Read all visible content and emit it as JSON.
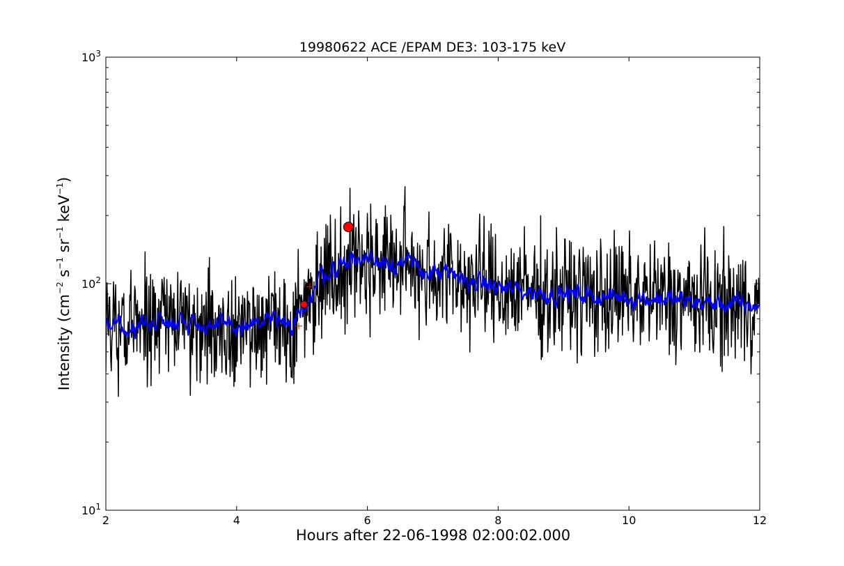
{
  "chart_data": {
    "type": "line",
    "title": "19980622 ACE /EPAM DE3: 103-175 keV",
    "xlabel": "Hours after 22-06-1998 02:00:02.000",
    "ylabel": {
      "prefix": "Intensity (cm",
      "exp1": "−2",
      "mid1": " s",
      "exp2": "−1",
      "mid2": " sr",
      "exp3": "−1",
      "mid3": " keV",
      "exp4": "−1",
      "suffix": ")"
    },
    "xlim": [
      2,
      12
    ],
    "ylim": [
      10,
      1000
    ],
    "yscale": "log",
    "grid": false,
    "x_ticks": [
      {
        "value": 2,
        "label": "2"
      },
      {
        "value": 4,
        "label": "4"
      },
      {
        "value": 6,
        "label": "6"
      },
      {
        "value": 8,
        "label": "8"
      },
      {
        "value": 10,
        "label": "10"
      },
      {
        "value": 12,
        "label": "12"
      }
    ],
    "y_ticks": [
      {
        "value": 10,
        "base": "10",
        "exp": "1"
      },
      {
        "value": 100,
        "base": "10",
        "exp": "2"
      },
      {
        "value": 1000,
        "base": "10",
        "exp": "3"
      }
    ],
    "series": [
      {
        "role": "raw",
        "color": "#000000",
        "keypoints": [
          [
            2.0,
            70
          ],
          [
            2.3,
            60
          ],
          [
            2.6,
            68
          ],
          [
            3.0,
            70
          ],
          [
            3.3,
            68
          ],
          [
            3.6,
            65
          ],
          [
            4.0,
            64
          ],
          [
            4.3,
            66
          ],
          [
            4.6,
            70
          ],
          [
            4.85,
            60
          ],
          [
            5.0,
            80
          ],
          [
            5.15,
            88
          ],
          [
            5.3,
            112
          ],
          [
            5.5,
            115
          ],
          [
            5.7,
            128
          ],
          [
            6.0,
            128
          ],
          [
            6.3,
            126
          ],
          [
            6.6,
            122
          ],
          [
            7.0,
            112
          ],
          [
            7.5,
            104
          ],
          [
            8.0,
            96
          ],
          [
            8.5,
            92
          ],
          [
            9.0,
            90
          ],
          [
            9.5,
            88
          ],
          [
            10.0,
            87
          ],
          [
            10.5,
            86
          ],
          [
            11.0,
            83
          ],
          [
            11.5,
            81
          ],
          [
            12.0,
            80
          ]
        ],
        "noise_log10": 0.13
      },
      {
        "role": "smoothed",
        "color": "#0000ff",
        "keypoints": [
          [
            2.0,
            70
          ],
          [
            2.3,
            60
          ],
          [
            2.6,
            68
          ],
          [
            3.0,
            70
          ],
          [
            3.3,
            68
          ],
          [
            3.6,
            65
          ],
          [
            4.0,
            64
          ],
          [
            4.3,
            66
          ],
          [
            4.6,
            70
          ],
          [
            4.85,
            60
          ],
          [
            5.0,
            80
          ],
          [
            5.15,
            88
          ],
          [
            5.3,
            112
          ],
          [
            5.5,
            115
          ],
          [
            5.7,
            128
          ],
          [
            6.0,
            128
          ],
          [
            6.3,
            126
          ],
          [
            6.6,
            122
          ],
          [
            7.0,
            112
          ],
          [
            7.5,
            104
          ],
          [
            8.0,
            96
          ],
          [
            8.5,
            92
          ],
          [
            9.0,
            90
          ],
          [
            9.5,
            88
          ],
          [
            10.0,
            87
          ],
          [
            10.5,
            86
          ],
          [
            11.0,
            83
          ],
          [
            11.5,
            81
          ],
          [
            12.0,
            80
          ]
        ],
        "noise_log10": 0.05
      }
    ],
    "markers": [
      {
        "x": 5.03,
        "y": 81,
        "style": "circle",
        "color": "#ff0000",
        "size": "small"
      },
      {
        "x": 5.71,
        "y": 178,
        "style": "circle",
        "color": "#ff0000",
        "size": "large"
      },
      {
        "x": 4.95,
        "y": 65,
        "style": "plus",
        "color": "#ff0000"
      },
      {
        "x": 5.12,
        "y": 97,
        "style": "plus",
        "color": "#ff0000"
      }
    ]
  }
}
